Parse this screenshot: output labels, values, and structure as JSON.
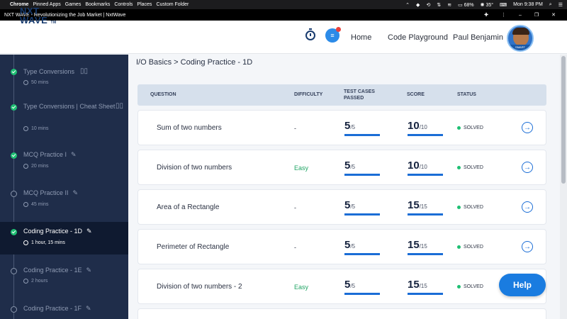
{
  "menubar": {
    "items": [
      "Chrome",
      "Pinned Apps",
      "Games",
      "Bookmarks",
      "Controls",
      "Places",
      "Custom Folder"
    ],
    "battery": "68%",
    "temp": "35°",
    "clock": "Mon 9:38 PM"
  },
  "window": {
    "title": "NXT WAVE - Revolutionizing the Job Market | NxtWave"
  },
  "header": {
    "logo_line1": "NXT",
    "logo_line2": "WAVE",
    "logo_tm": "TM",
    "nav": [
      "Home",
      "Code Playground"
    ],
    "username": "Paul Benjamin",
    "avatar_badge": "SMART"
  },
  "sidebar": {
    "items": [
      {
        "title": "Type Conversions",
        "meta": "50 mins",
        "state": "done"
      },
      {
        "title": "Type Conversions | Cheat Sheet",
        "meta": "10 mins",
        "state": "done"
      },
      {
        "title": "MCQ Practice I",
        "meta": "20 mins",
        "state": "done"
      },
      {
        "title": "MCQ Practice II",
        "meta": "45 mins",
        "state": "todo"
      },
      {
        "title": "Coding Practice - 1D",
        "meta": "1 hour, 15 mins",
        "state": "done"
      },
      {
        "title": "Coding Practice - 1E",
        "meta": "2 hours",
        "state": "todo"
      },
      {
        "title": "Coding Practice - 1F",
        "meta": "",
        "state": "todo"
      }
    ]
  },
  "breadcrumb": "I/O Basics > Coding Practice - 1D",
  "table": {
    "headers": {
      "question": "QUESTION",
      "difficulty": "DIFFICULTY",
      "tests_line1": "TEST CASES",
      "tests_line2": "PASSED",
      "score": "SCORE",
      "status": "STATUS"
    },
    "rows": [
      {
        "question": "Sum of two numbers",
        "difficulty": "-",
        "tests": "5",
        "tests_total": "/5",
        "score": "10",
        "score_total": "/10",
        "status": "SOLVED"
      },
      {
        "question": "Division of two numbers",
        "difficulty": "Easy",
        "tests": "5",
        "tests_total": "/5",
        "score": "10",
        "score_total": "/10",
        "status": "SOLVED"
      },
      {
        "question": "Area of a Rectangle",
        "difficulty": "-",
        "tests": "5",
        "tests_total": "/5",
        "score": "15",
        "score_total": "/15",
        "status": "SOLVED"
      },
      {
        "question": "Perimeter of Rectangle",
        "difficulty": "-",
        "tests": "5",
        "tests_total": "/5",
        "score": "15",
        "score_total": "/15",
        "status": "SOLVED"
      },
      {
        "question": "Division of two numbers - 2",
        "difficulty": "Easy",
        "tests": "5",
        "tests_total": "/5",
        "score": "15",
        "score_total": "/15",
        "status": "SOLVED"
      }
    ]
  },
  "help_label": "Help",
  "colors": {
    "accent": "#1a7ce0",
    "sidebar": "#1f2d4a",
    "solved": "#1fbf73",
    "easy": "#21a565"
  }
}
